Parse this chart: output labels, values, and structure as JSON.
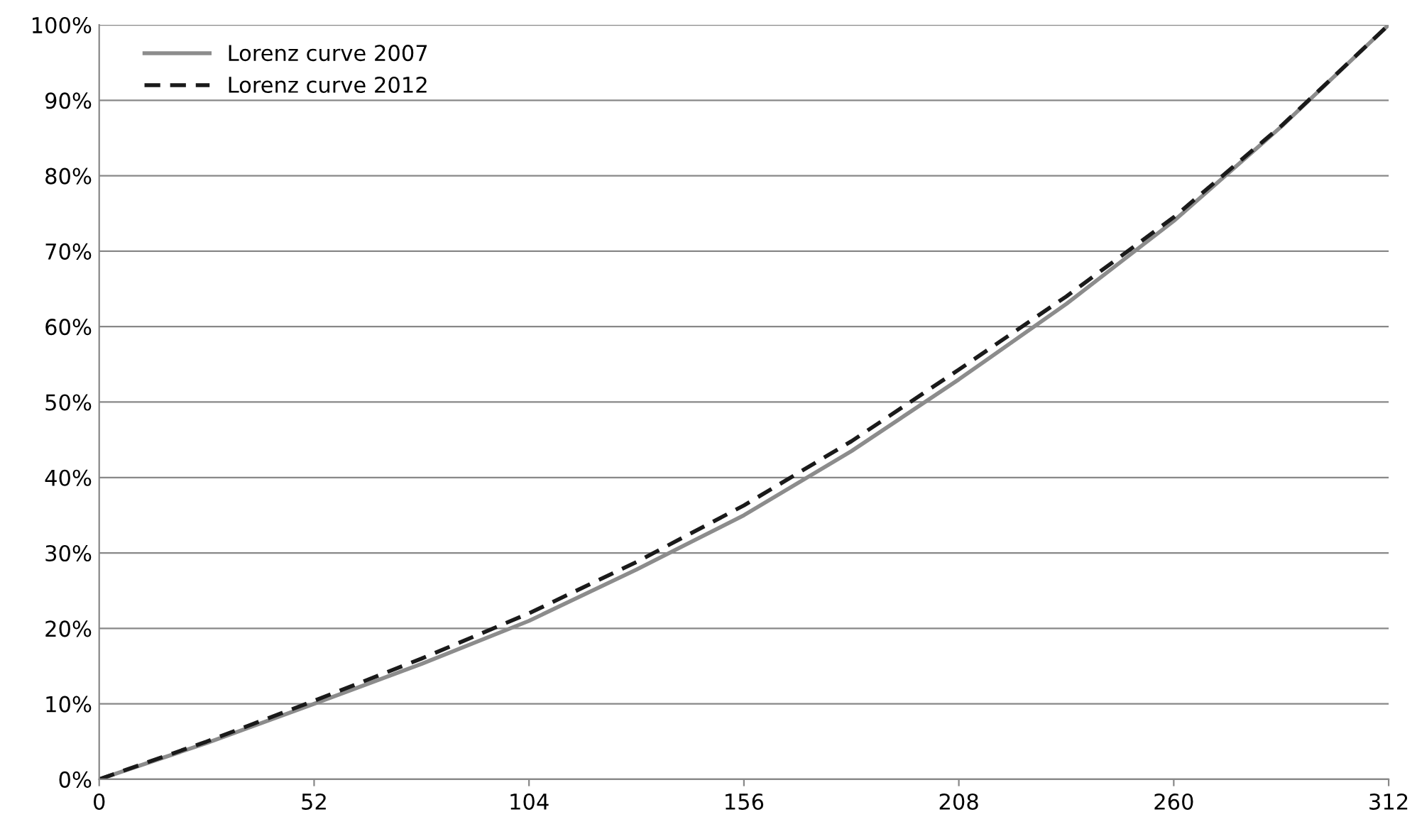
{
  "chart_data": {
    "type": "line",
    "x": [
      0,
      26,
      52,
      78,
      104,
      130,
      156,
      182,
      208,
      234,
      260,
      286,
      312
    ],
    "series": [
      {
        "name": "Lorenz curve 2007",
        "color": "#8c8c8c",
        "line_style": "solid",
        "values": [
          0,
          4.8,
          10,
          15.3,
          21,
          27.8,
          35,
          43.5,
          53,
          63,
          74,
          86.5,
          100
        ]
      },
      {
        "name": "Lorenz curve 2012",
        "color": "#1a1a1a",
        "line_style": "dashed",
        "values": [
          0,
          5,
          10.4,
          16,
          22,
          28.8,
          36.3,
          44.8,
          54.3,
          64,
          74.5,
          86.6,
          100
        ]
      }
    ],
    "xlim": [
      0,
      312
    ],
    "xticks": [
      0,
      52,
      104,
      156,
      208,
      260,
      312
    ],
    "ylim": [
      0,
      100
    ],
    "yticks": [
      {
        "value": 0,
        "label": "0%"
      },
      {
        "value": 10,
        "label": "10%"
      },
      {
        "value": 20,
        "label": "20%"
      },
      {
        "value": 30,
        "label": "30%"
      },
      {
        "value": 40,
        "label": "40%"
      },
      {
        "value": 50,
        "label": "50%"
      },
      {
        "value": 60,
        "label": "60%"
      },
      {
        "value": 70,
        "label": "70%"
      },
      {
        "value": 80,
        "label": "80%"
      },
      {
        "value": 90,
        "label": "90%"
      },
      {
        "value": 100,
        "label": "100%"
      }
    ],
    "grid": "y",
    "legend": "top left",
    "marker": "none"
  }
}
